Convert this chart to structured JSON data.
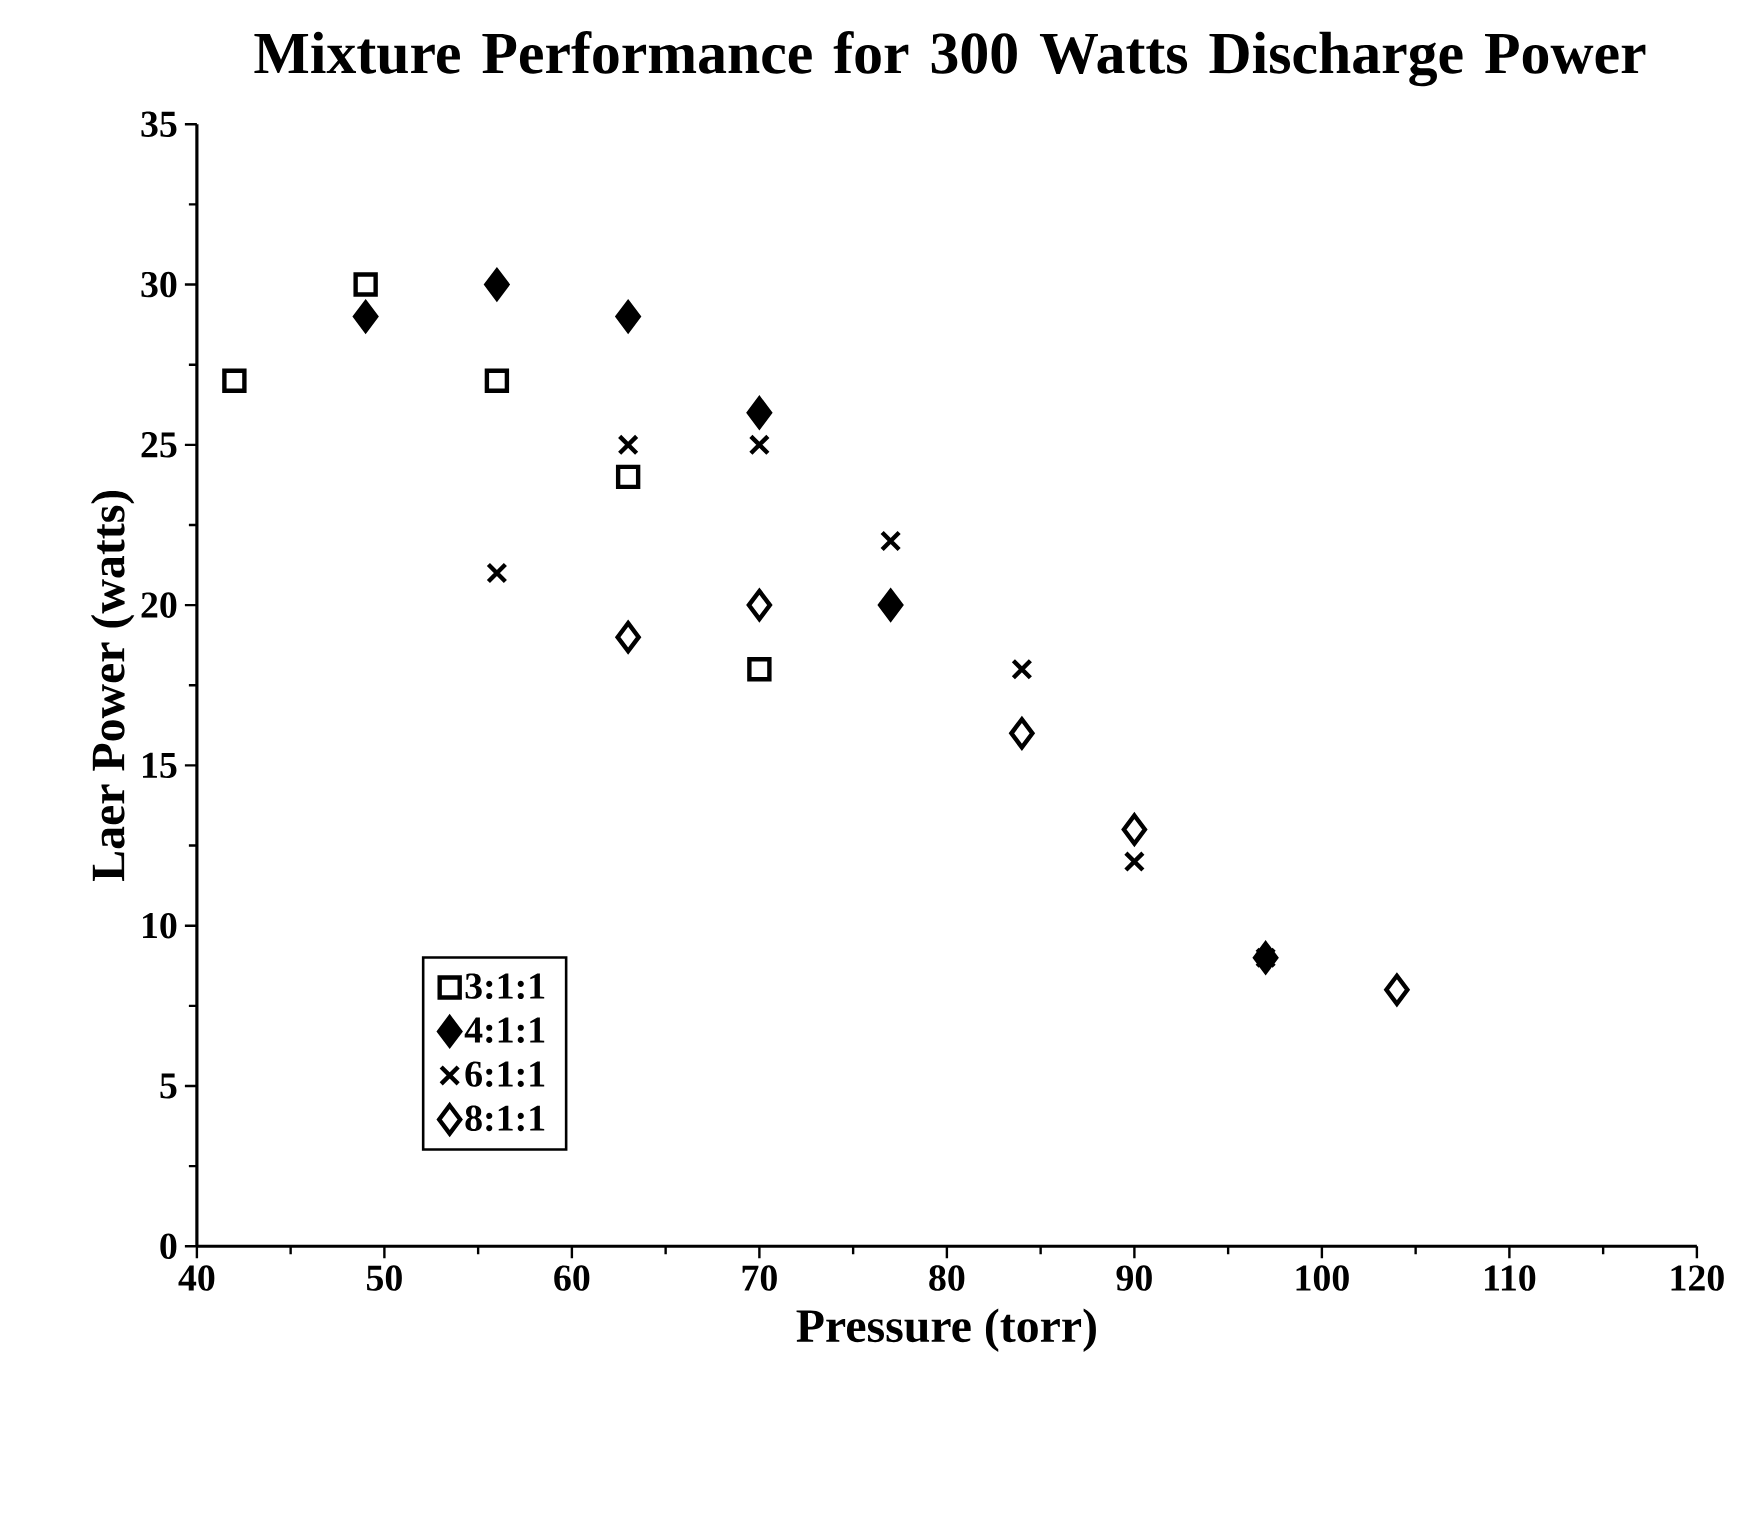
{
  "chart_data": {
    "type": "scatter",
    "title": "Mixture Performance for 300 Watts Discharge Power",
    "xlabel": "Pressure (torr)",
    "ylabel": "Laer Power (watts)",
    "xlim": [
      40,
      120
    ],
    "xticks": [
      40,
      50,
      60,
      70,
      80,
      90,
      100,
      110,
      120
    ],
    "ylim": [
      0,
      35
    ],
    "yticks": [
      0,
      5,
      10,
      15,
      20,
      25,
      30,
      35
    ],
    "grid": false,
    "legend": "bottom left",
    "series": [
      {
        "name": "3:1:1",
        "color": "#000000",
        "marker": "square",
        "x": [
          42,
          49,
          56,
          63,
          70
        ],
        "values": [
          27,
          30,
          27,
          24,
          18
        ]
      },
      {
        "name": "4:1:1",
        "color": "#000000",
        "marker": "diamond",
        "x": [
          49,
          56,
          63,
          70,
          77,
          97
        ],
        "values": [
          29,
          30,
          29,
          26,
          20,
          9
        ]
      },
      {
        "name": "6:1:1",
        "color": "#000000",
        "marker": "cross",
        "x": [
          56,
          63,
          70,
          77,
          84,
          90,
          97
        ],
        "values": [
          21,
          25,
          25,
          22,
          18,
          12,
          9
        ]
      },
      {
        "name": "8:1:1",
        "color": "#000000",
        "marker": "diamond",
        "x": [
          63,
          70,
          84,
          90,
          104
        ],
        "values": [
          19,
          20,
          16,
          13,
          8
        ]
      }
    ]
  }
}
